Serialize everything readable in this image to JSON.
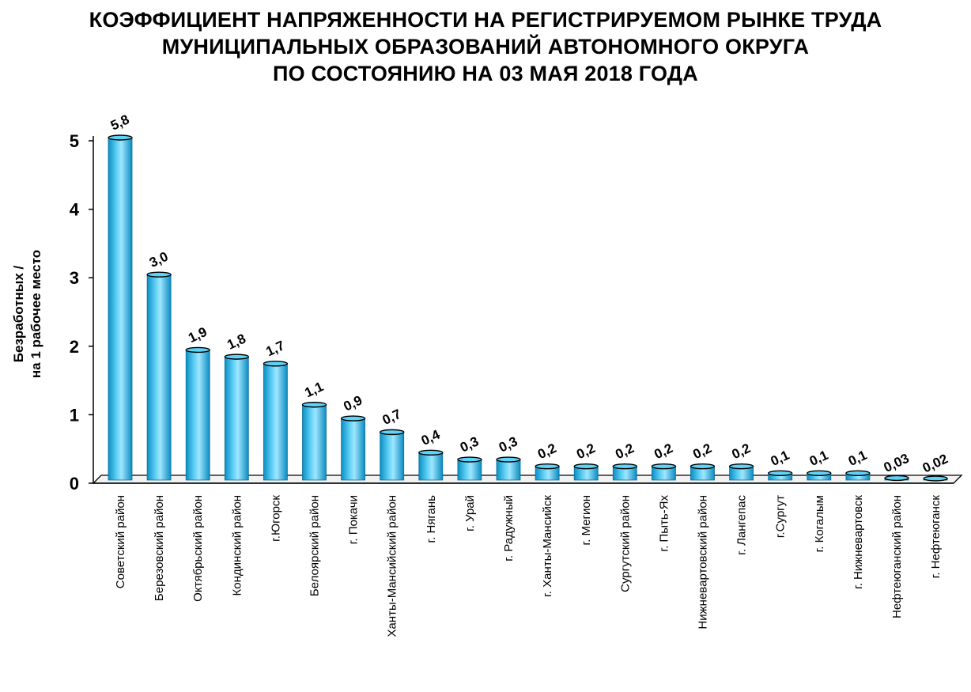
{
  "chart_data": {
    "type": "bar",
    "title_lines": [
      "КОЭФФИЦИЕНТ НАПРЯЖЕННОСТИ НА РЕГИСТРИРУЕМОМ РЫНКЕ ТРУДА",
      "МУНИЦИПАЛЬНЫХ ОБРАЗОВАНИЙ АВТОНОМНОГО ОКРУГА",
      "ПО СОСТОЯНИЮ НА 03 МАЯ 2018 ГОДА"
    ],
    "ylabel_lines": [
      "Безработных /",
      "на 1 рабочее место"
    ],
    "xlabel": "",
    "ylim": [
      0,
      5
    ],
    "yticks": [
      "0",
      "1",
      "2",
      "3",
      "4",
      "5"
    ],
    "categories": [
      "Советский район",
      "Березовский район",
      "Октябрьский район",
      "Кондинский район",
      "г.Югорск",
      "Белоярский район",
      "г. Покачи",
      "Ханты-Мансийский район",
      "г. Нягань",
      "г. Урай",
      "г. Радужный",
      "г. Ханты-Мансийск",
      "г. Мегион",
      "Сургутский район",
      "г. Пыть-Ях",
      "Нижневартовский район",
      "г. Лангепас",
      "г.Сургут",
      "г. Когалым",
      "г. Нижневартовск",
      "Нефтеюганский район",
      "г. Нефтеюганск"
    ],
    "values": [
      5.8,
      3.0,
      1.9,
      1.8,
      1.7,
      1.1,
      0.9,
      0.7,
      0.4,
      0.3,
      0.3,
      0.2,
      0.2,
      0.2,
      0.2,
      0.2,
      0.2,
      0.1,
      0.1,
      0.1,
      0.03,
      0.02
    ],
    "data_labels": [
      "5,8",
      "3,0",
      "1,9",
      "1,8",
      "1,7",
      "1,1",
      "0,9",
      "0,7",
      "0,4",
      "0,3",
      "0,3",
      "0,2",
      "0,2",
      "0,2",
      "0,2",
      "0,2",
      "0,2",
      "0,1",
      "0,1",
      "0,1",
      "0,03",
      "0,02"
    ],
    "bar_color": "#1aaee0",
    "grid": false,
    "legend": "none"
  }
}
